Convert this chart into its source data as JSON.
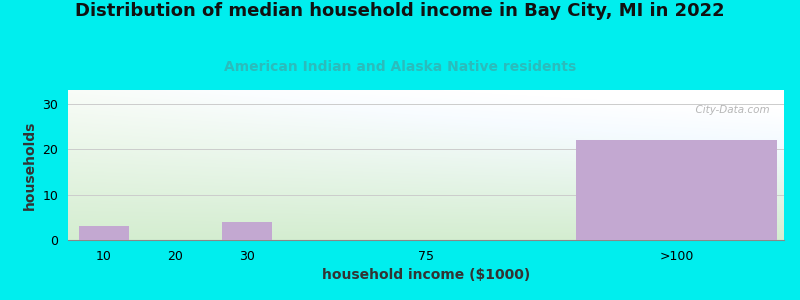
{
  "title": "Distribution of median household income in Bay City, MI in 2022",
  "subtitle": "American Indian and Alaska Native residents",
  "xlabel": "household income ($1000)",
  "ylabel": "households",
  "categories": [
    "10",
    "20",
    "30",
    "75",
    ">100"
  ],
  "values": [
    3,
    0,
    4,
    0,
    22
  ],
  "bar_color": "#C3A8D1",
  "outer_bg": "#00EEEE",
  "ylim": [
    0,
    33
  ],
  "yticks": [
    0,
    10,
    20,
    30
  ],
  "watermark": "  City-Data.com",
  "title_fontsize": 13,
  "subtitle_fontsize": 10,
  "subtitle_color": "#2ABCBC",
  "axis_label_fontsize": 10,
  "tick_fontsize": 9
}
